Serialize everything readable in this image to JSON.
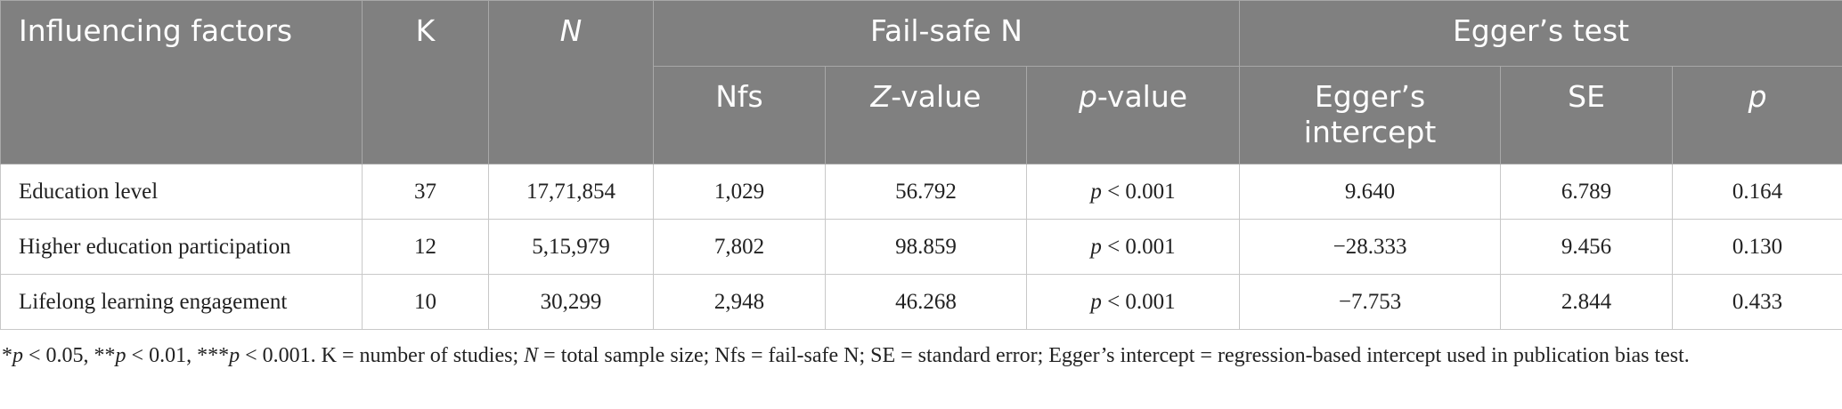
{
  "table": {
    "header": {
      "row1": [
        {
          "text": "Influencing factors"
        },
        {
          "text": "K"
        },
        {
          "em": "N"
        },
        {
          "text": "Fail-safe N"
        },
        {
          "text": "Egger’s test"
        }
      ],
      "row2": [
        {
          "text": "Nfs"
        },
        {
          "em": "Z",
          "text": "-value"
        },
        {
          "em": "p",
          "text": "-value"
        },
        {
          "text": "Egger’s intercept"
        },
        {
          "text": "SE"
        },
        {
          "em": "p"
        }
      ]
    },
    "rows": [
      [
        {
          "text": "Education level"
        },
        {
          "text": "37"
        },
        {
          "text": "17,71,854"
        },
        {
          "text": "1,029"
        },
        {
          "text": "56.792"
        },
        {
          "em": "p",
          "text": " < 0.001"
        },
        {
          "text": "9.640"
        },
        {
          "text": "6.789"
        },
        {
          "text": "0.164"
        }
      ],
      [
        {
          "text": "Higher education participation"
        },
        {
          "text": "12"
        },
        {
          "text": "5,15,979"
        },
        {
          "text": "7,802"
        },
        {
          "text": "98.859"
        },
        {
          "em": "p",
          "text": " < 0.001"
        },
        {
          "text": "−28.333"
        },
        {
          "text": "9.456"
        },
        {
          "text": "0.130"
        }
      ],
      [
        {
          "text": "Lifelong learning engagement"
        },
        {
          "text": "10"
        },
        {
          "text": "30,299"
        },
        {
          "text": "2,948"
        },
        {
          "text": "46.268"
        },
        {
          "em": "p",
          "text": " < 0.001"
        },
        {
          "text": "−7.753"
        },
        {
          "text": "2.844"
        },
        {
          "text": "0.433"
        }
      ]
    ]
  },
  "footnote": [
    {
      "text": "*"
    },
    {
      "em": "p"
    },
    {
      "text": " < 0.05, **"
    },
    {
      "em": "p"
    },
    {
      "text": " < 0.01, ***"
    },
    {
      "em": "p"
    },
    {
      "text": " < 0.001. K = number of studies; "
    },
    {
      "em": "N"
    },
    {
      "text": " = total sample size; Nfs = fail-safe N; SE = standard error; Egger’s intercept = regression-based intercept used in publication bias test."
    }
  ]
}
